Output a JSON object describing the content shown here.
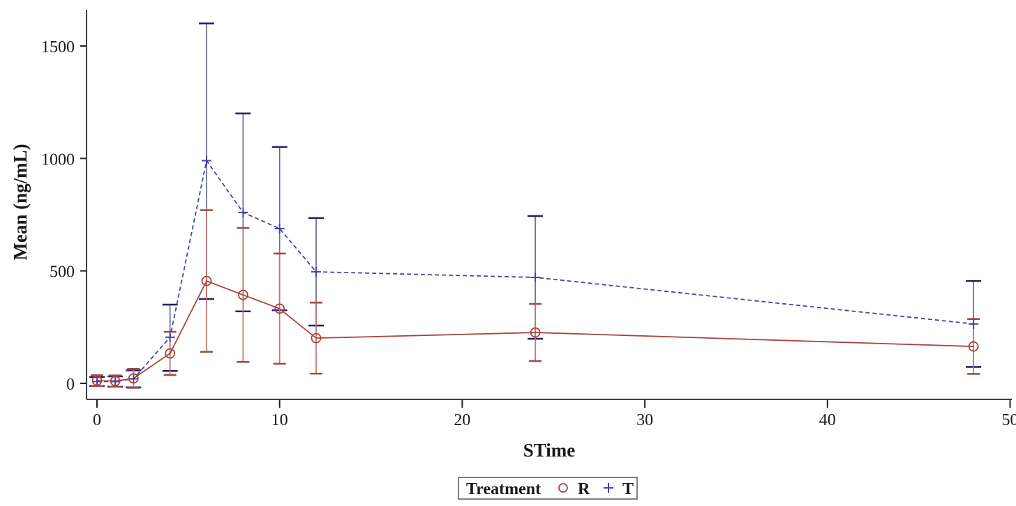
{
  "chart_data": {
    "type": "line",
    "title": "",
    "xlabel": "STime",
    "ylabel": "Mean (ng/mL)",
    "x_ticks": [
      0,
      10,
      20,
      30,
      40,
      50
    ],
    "y_ticks": [
      0,
      500,
      1000,
      1500
    ],
    "xlim": [
      -0.6,
      50.4
    ],
    "ylim": [
      -70,
      1660
    ],
    "grid": false,
    "legend_position": "bottom",
    "x": [
      0,
      1,
      2,
      4,
      6,
      8,
      10,
      12,
      24,
      48
    ],
    "series": [
      {
        "name": "T",
        "marker": "plus",
        "line_style": "dashed",
        "line_color": "#4444ad",
        "marker_color": "#4343b0",
        "errbar_color": "#6a6a9e",
        "cap_color": "#24246a",
        "mean": [
          8,
          8,
          20,
          205,
          990,
          760,
          688,
          496,
          471,
          264
        ],
        "lo": [
          -12,
          -15,
          -18,
          55,
          375,
          320,
          325,
          257,
          198,
          73
        ],
        "hi": [
          28,
          31,
          58,
          350,
          1600,
          1200,
          1051,
          735,
          744,
          455
        ]
      },
      {
        "name": "R",
        "marker": "circle",
        "line_style": "solid",
        "line_color": "#a8453d",
        "marker_color": "#b13f38",
        "errbar_color": "#c4756a",
        "cap_color": "#a84a40",
        "mean": [
          12,
          10,
          22,
          133,
          455,
          393,
          332,
          201,
          226,
          164
        ],
        "lo": [
          -12,
          -15,
          -20,
          37,
          140,
          95,
          87,
          43,
          99,
          42
        ],
        "hi": [
          36,
          35,
          64,
          229,
          770,
          691,
          577,
          359,
          353,
          286
        ]
      }
    ],
    "legend": {
      "title": "Treatment",
      "entries": [
        {
          "label": "R",
          "marker": "circle",
          "color": "#b13f38"
        },
        {
          "label": "T",
          "marker": "plus",
          "color": "#4343b0"
        }
      ]
    },
    "axis_color": "#3f3f3f"
  }
}
